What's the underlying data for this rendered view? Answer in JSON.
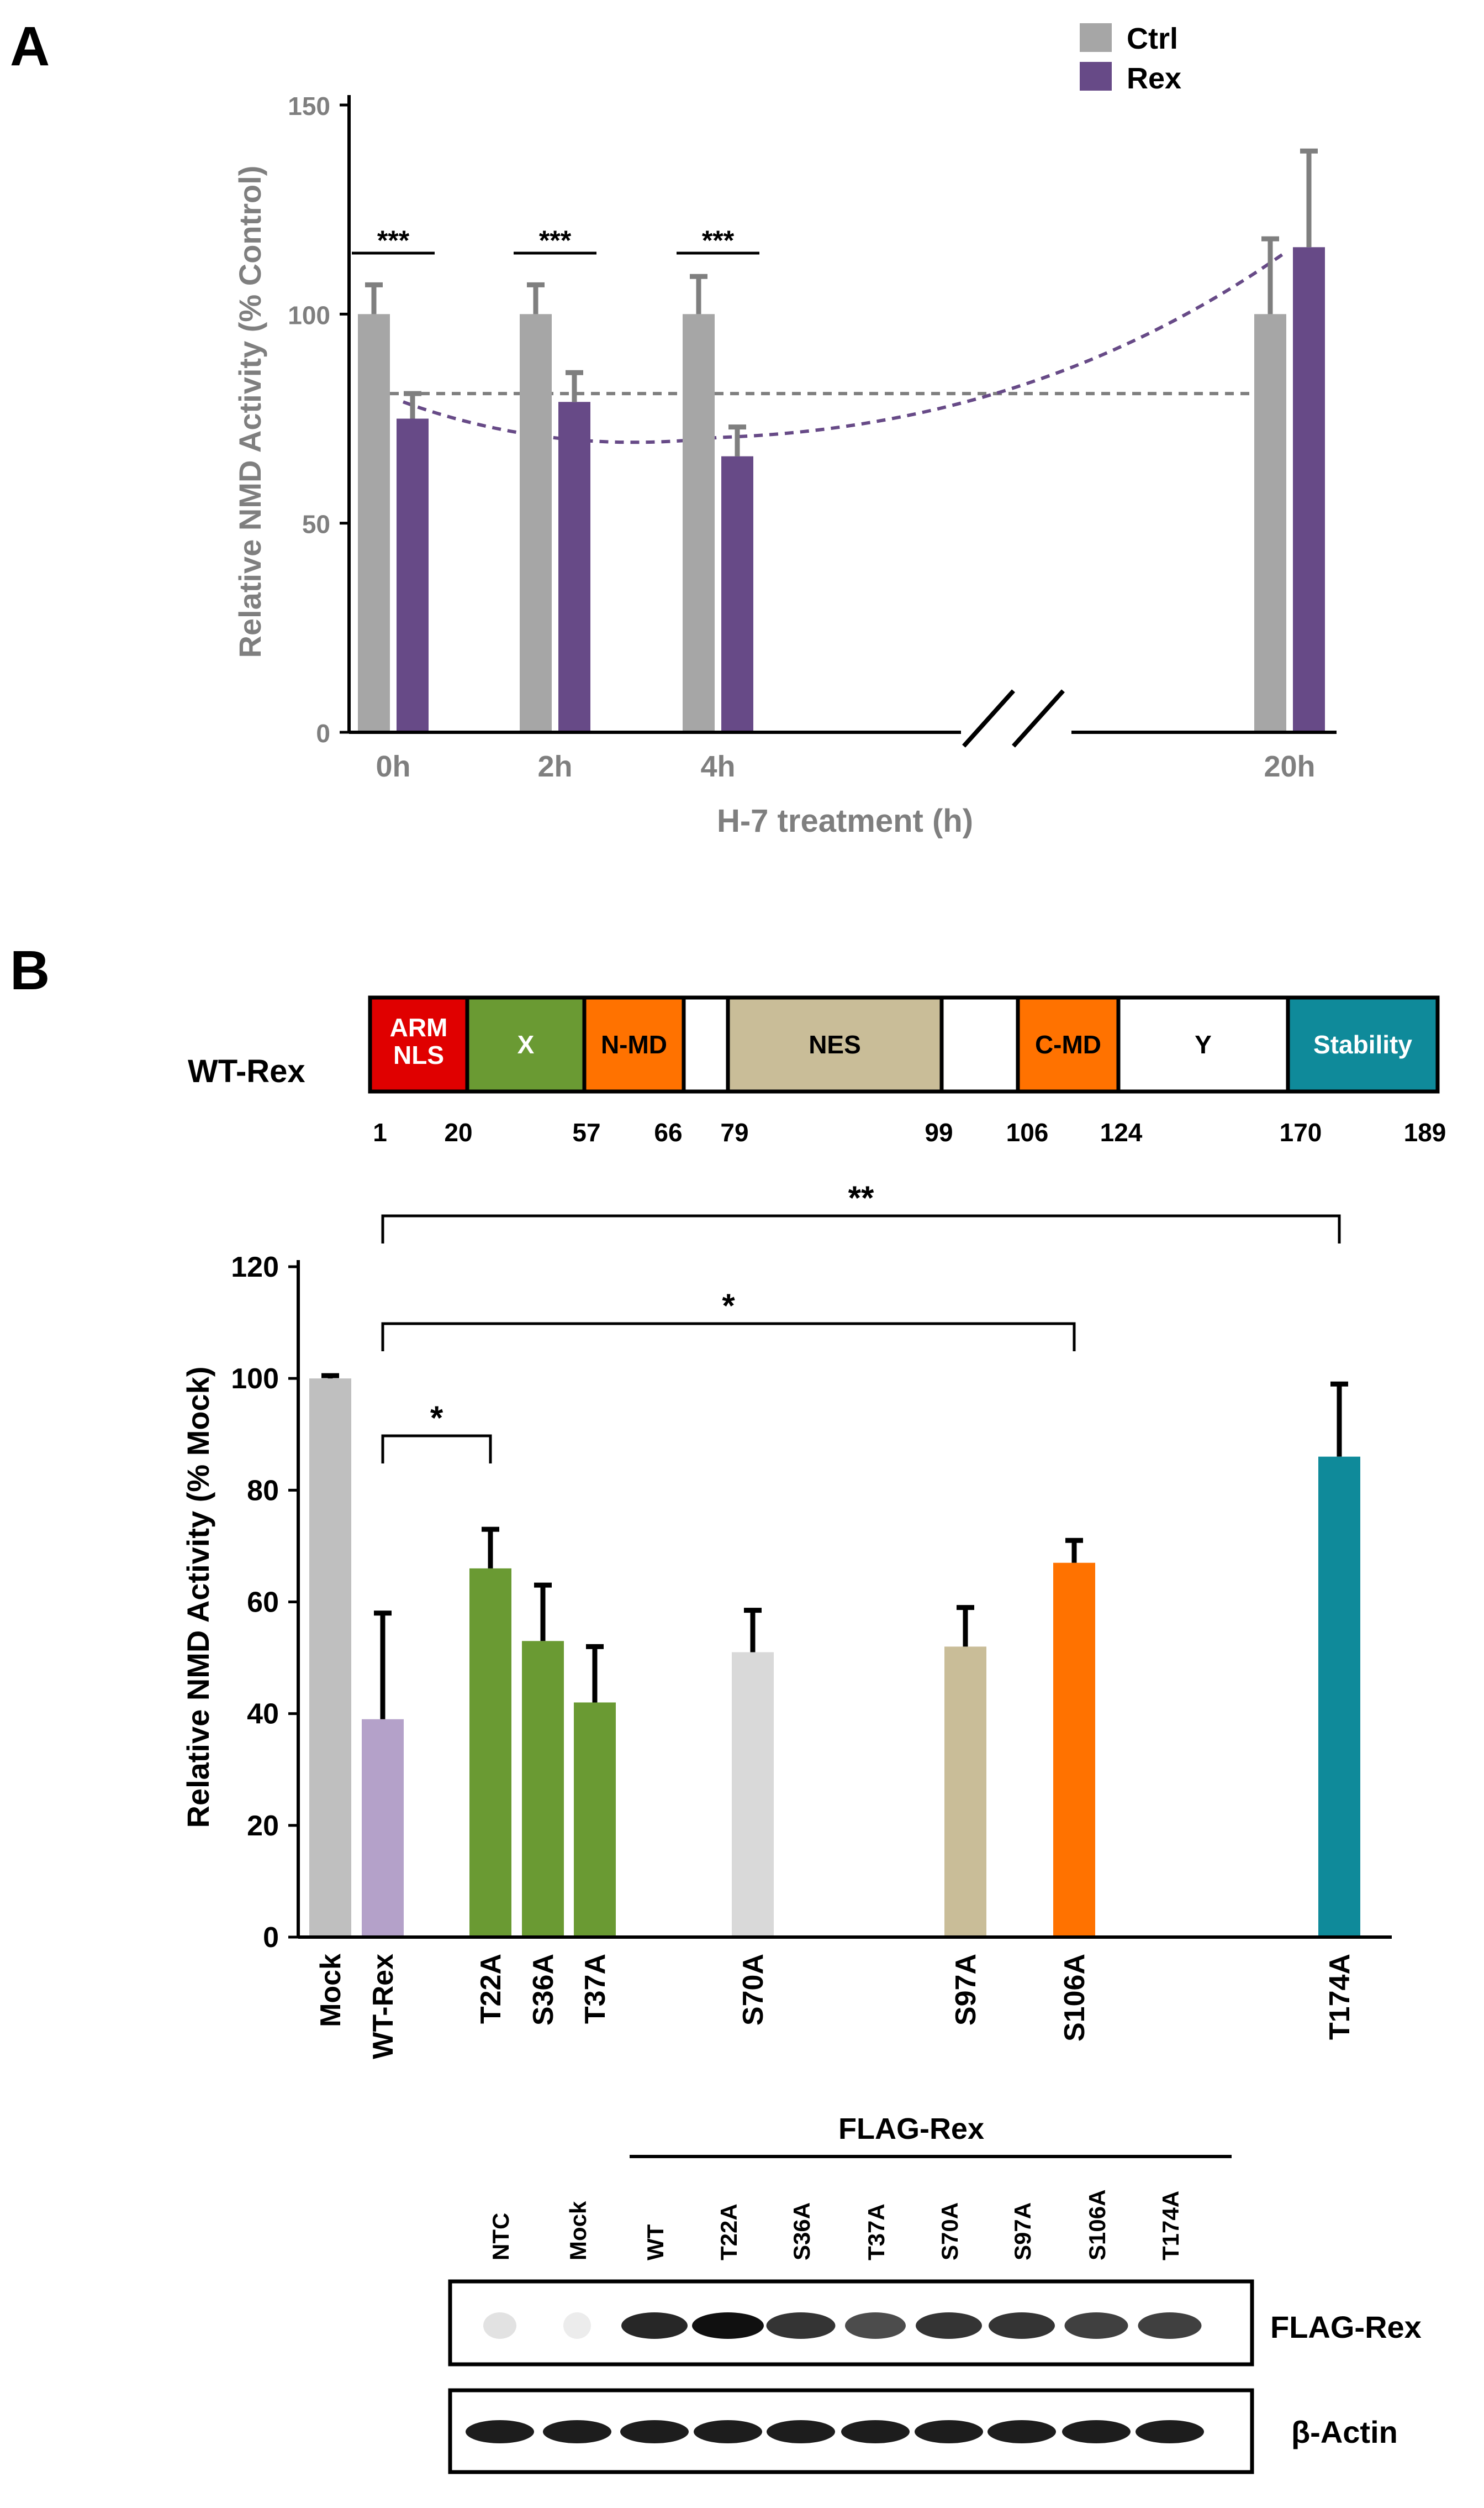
{
  "colors": {
    "ctrl": "#a6a6a6",
    "rex": "#674a87",
    "mock": "#bfbfbf",
    "wt_rex": "#b4a1c9",
    "x_domain": "#6a9a33",
    "s70a": "#d9d9d9",
    "nes": "#c9bd98",
    "cmd": "#ff7200",
    "stability": "#0f8a9a",
    "arm": "#e00000",
    "trend_ctrl": "#7f7f7f",
    "trend_rex": "#674a87"
  },
  "panel_a": {
    "panel_label": "A",
    "xlabel": "H-7 treatment (h)",
    "ylabel": "Relative NMD Activity (% Control)"
  },
  "panel_b": {
    "panel_label": "B",
    "construct_label": "WT-Rex",
    "domains": [
      {
        "name": "ARM\nNLS",
        "start": 1,
        "end": 20,
        "color": "#e00000",
        "text_color": "#ffffff"
      },
      {
        "name": "X",
        "start": 20,
        "end": 57,
        "color": "#6a9a33",
        "text_color": "#ffffff"
      },
      {
        "name": "N-MD",
        "start": 57,
        "end": 66,
        "color": "#ff7200",
        "text_color": "#000000"
      },
      {
        "name": "",
        "start": 66,
        "end": 79,
        "color": "#ffffff",
        "text_color": "#000000"
      },
      {
        "name": "NES",
        "start": 79,
        "end": 99,
        "color": "#c9bd98",
        "text_color": "#000000"
      },
      {
        "name": "",
        "start": 99,
        "end": 106,
        "color": "#ffffff",
        "text_color": "#000000"
      },
      {
        "name": "C-MD",
        "start": 106,
        "end": 124,
        "color": "#ff7200",
        "text_color": "#000000"
      },
      {
        "name": "Y",
        "start": 124,
        "end": 170,
        "color": "#ffffff",
        "text_color": "#000000"
      },
      {
        "name": "Stability",
        "start": 170,
        "end": 189,
        "color": "#0f8a9a",
        "text_color": "#ffffff"
      }
    ],
    "positions": [
      "1",
      "20",
      "57",
      "66",
      "79",
      "99",
      "106",
      "124",
      "170",
      "189"
    ],
    "ylabel": "Relative NMD Activity (% Mock)",
    "blot": {
      "group_label": "FLAG-Rex",
      "lanes": [
        "NTC",
        "Mock",
        "WT",
        "T22A",
        "S36A",
        "T37A",
        "S70A",
        "S97A",
        "S106A",
        "T174A"
      ],
      "row_labels": [
        "FLAG-Rex",
        "β-Actin"
      ]
    }
  },
  "chart_data": [
    {
      "type": "bar",
      "title": "",
      "xlabel": "H-7 treatment (h)",
      "ylabel": "Relative NMD Activity (% Control)",
      "ylim": [
        0,
        150
      ],
      "yticks": [
        "0",
        "50",
        "100",
        "150"
      ],
      "categories": [
        "0h",
        "2h",
        "4h",
        "20h"
      ],
      "axis_break_between": [
        "4h",
        "20h"
      ],
      "series": [
        {
          "name": "Ctrl",
          "values": [
            100,
            100,
            100,
            100
          ],
          "errors": [
            7,
            7,
            9,
            18
          ]
        },
        {
          "name": "Rex",
          "values": [
            75,
            79,
            66,
            116
          ],
          "errors": [
            6,
            7,
            7,
            23
          ]
        }
      ],
      "trendlines": [
        {
          "series": "Ctrl",
          "style": "dashed",
          "kind": "linear"
        },
        {
          "series": "Rex",
          "style": "dashed",
          "kind": "polynomial"
        }
      ],
      "significance": [
        {
          "category": "0h",
          "label": "***"
        },
        {
          "category": "2h",
          "label": "***"
        },
        {
          "category": "4h",
          "label": "***"
        }
      ],
      "legend": [
        "Ctrl",
        "Rex"
      ],
      "legend_position": "top-right"
    },
    {
      "type": "bar",
      "title": "",
      "xlabel": "",
      "ylabel": "Relative NMD Activity (% Mock)",
      "ylim": [
        0,
        120
      ],
      "yticks": [
        "0",
        "20",
        "40",
        "60",
        "80",
        "100",
        "120"
      ],
      "categories": [
        "Mock",
        "WT-Rex",
        "T22A",
        "S36A",
        "T37A",
        "S70A",
        "S97A",
        "S106A",
        "T174A"
      ],
      "values": [
        100,
        39,
        66,
        53,
        42,
        51,
        52,
        67,
        86
      ],
      "errors": [
        0.5,
        19,
        7,
        10,
        10,
        7.5,
        7,
        4,
        13
      ],
      "significance": [
        {
          "from": "WT-Rex",
          "to": "T22A",
          "label": "*"
        },
        {
          "from": "WT-Rex",
          "to": "S106A",
          "label": "*"
        },
        {
          "from": "WT-Rex",
          "to": "T174A",
          "label": "**"
        }
      ]
    }
  ]
}
